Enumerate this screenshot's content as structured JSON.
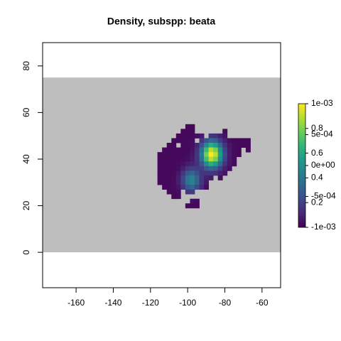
{
  "chart_data": {
    "type": "heatmap",
    "title": "Density, subspp: beata",
    "xlim": [
      -178,
      -50
    ],
    "ylim": [
      -15.2,
      90
    ],
    "xticks": [
      -160,
      -140,
      -120,
      -100,
      -80,
      -60
    ],
    "yticks": [
      0,
      20,
      40,
      60,
      80
    ],
    "extent_y": [
      0,
      75
    ],
    "extent_color": "#bebebe",
    "x": [
      -115,
      -112.5,
      -110,
      -107.5,
      -105,
      -102.5,
      -100,
      -97.5,
      -95,
      -92.5,
      -90,
      -87.5,
      -85,
      -82.5,
      -80,
      -77.5,
      -75,
      -72.5,
      -70,
      -67.5
    ],
    "y": [
      54,
      52,
      50,
      48,
      46,
      44,
      42,
      40,
      38,
      36,
      34,
      32,
      30,
      28,
      26,
      24,
      22,
      20
    ],
    "z": [
      [
        null,
        null,
        null,
        null,
        null,
        null,
        0.02,
        0.02,
        null,
        null,
        null,
        null,
        null,
        null,
        null,
        null,
        null,
        null,
        null,
        null
      ],
      [
        null,
        null,
        null,
        null,
        null,
        0.02,
        0.02,
        0.02,
        null,
        null,
        null,
        null,
        null,
        null,
        0.03,
        null,
        null,
        null,
        null,
        null
      ],
      [
        null,
        null,
        null,
        null,
        0.02,
        0.02,
        0.02,
        0.02,
        0.04,
        0.07,
        null,
        0.15,
        0.14,
        0.09,
        0.05,
        null,
        null,
        null,
        null,
        null
      ],
      [
        null,
        null,
        null,
        0.02,
        0.02,
        0.02,
        0.02,
        0.03,
        null,
        0.15,
        0.27,
        0.34,
        0.31,
        0.19,
        0.09,
        0.04,
        0.02,
        0.02,
        0.02,
        0.02
      ],
      [
        null,
        null,
        0.02,
        0.02,
        null,
        0.02,
        0.02,
        0.04,
        0.1,
        0.26,
        0.48,
        0.62,
        0.55,
        0.34,
        0.15,
        0.06,
        0.03,
        0.02,
        0.02,
        0.02
      ],
      [
        null,
        0.02,
        0.02,
        0.02,
        0.02,
        0.02,
        0.02,
        0.05,
        0.14,
        0.36,
        0.68,
        0.89,
        0.79,
        0.49,
        0.21,
        0.07,
        0.03,
        0.02,
        null,
        0.02
      ],
      [
        0.02,
        0.02,
        0.02,
        0.02,
        0.02,
        0.02,
        0.03,
        0.06,
        0.16,
        0.41,
        0.78,
        1.0,
        0.9,
        0.55,
        0.24,
        0.08,
        0.03,
        0.02,
        null,
        null
      ],
      [
        0.02,
        0.02,
        0.02,
        0.02,
        0.02,
        0.03,
        0.04,
        0.07,
        0.15,
        0.37,
        0.69,
        0.89,
        0.79,
        0.49,
        0.21,
        0.07,
        0.03,
        null,
        null,
        null
      ],
      [
        0.02,
        0.02,
        0.02,
        0.02,
        0.03,
        0.05,
        0.08,
        0.1,
        0.14,
        0.27,
        0.48,
        0.62,
        0.55,
        0.34,
        0.15,
        0.06,
        0.03,
        null,
        null,
        null
      ],
      [
        0.02,
        0.02,
        0.02,
        0.02,
        0.04,
        0.09,
        0.16,
        0.19,
        0.18,
        0.19,
        0.28,
        0.34,
        0.31,
        0.19,
        0.09,
        0.04,
        null,
        null,
        null,
        null
      ],
      [
        0.02,
        0.02,
        0.02,
        0.03,
        0.06,
        0.16,
        0.29,
        0.33,
        0.25,
        0.16,
        0.15,
        0.16,
        0.14,
        0.09,
        0.05,
        null,
        null,
        null,
        null,
        null
      ],
      [
        0.02,
        0.02,
        0.02,
        0.03,
        0.08,
        0.21,
        0.39,
        0.45,
        0.32,
        0.16,
        0.09,
        0.07,
        null,
        0.04,
        null,
        null,
        null,
        null,
        null,
        null
      ],
      [
        0.02,
        0.02,
        0.02,
        0.03,
        0.08,
        0.21,
        0.39,
        0.45,
        0.32,
        0.15,
        0.06,
        null,
        null,
        null,
        null,
        null,
        null,
        null,
        null,
        null
      ],
      [
        null,
        0.02,
        0.02,
        0.03,
        0.06,
        0.16,
        0.28,
        0.33,
        0.23,
        0.11,
        0.04,
        null,
        null,
        null,
        null,
        null,
        null,
        null,
        null,
        null
      ],
      [
        null,
        null,
        0.02,
        0.02,
        0.04,
        null,
        0.16,
        0.18,
        null,
        null,
        null,
        null,
        null,
        null,
        null,
        null,
        null,
        null,
        null,
        null
      ],
      [
        null,
        null,
        null,
        0.02,
        0.03,
        null,
        null,
        null,
        null,
        null,
        null,
        null,
        null,
        null,
        null,
        null,
        null,
        null,
        null,
        null
      ],
      [
        null,
        null,
        null,
        null,
        null,
        null,
        null,
        0.04,
        0.03,
        null,
        null,
        null,
        null,
        null,
        null,
        null,
        null,
        null,
        null,
        null
      ],
      [
        null,
        null,
        null,
        null,
        null,
        null,
        0.02,
        0.02,
        0.02,
        null,
        null,
        null,
        null,
        null,
        null,
        null,
        null,
        null,
        null,
        null
      ]
    ],
    "zlim": [
      0,
      1
    ],
    "colorscale": [
      "#440154",
      "#482878",
      "#3e4989",
      "#31688e",
      "#26828e",
      "#1f9e89",
      "#35b779",
      "#6ece58",
      "#b5de2b",
      "#fde725"
    ],
    "legend_ticks": [
      0.2,
      0.4,
      0.6,
      0.8
    ],
    "legend2_lim": [
      -0.001,
      0.001
    ],
    "legend2_ticks": [
      {
        "value": -0.001,
        "label": "-1e-03"
      },
      {
        "value": -0.0005,
        "label": "-5e-04"
      },
      {
        "value": 0,
        "label": "0e+00"
      },
      {
        "value": 0.0005,
        "label": "5e-04"
      },
      {
        "value": 0.001,
        "label": "1e-03"
      }
    ]
  }
}
